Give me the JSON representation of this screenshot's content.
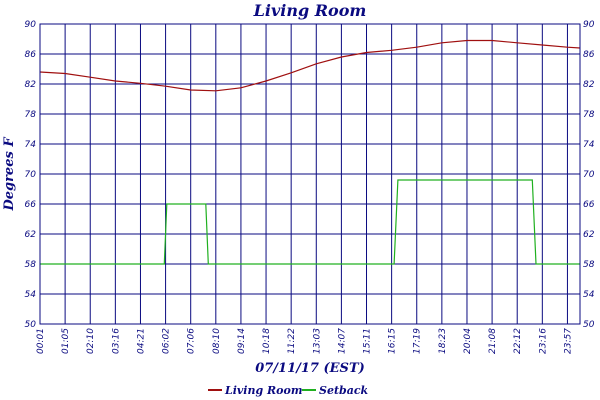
{
  "chart_data": {
    "type": "line",
    "title": "Living Room",
    "xlabel": "07/11/17 (EST)",
    "ylabel": "Degrees F",
    "ylim": [
      50,
      90
    ],
    "yticks": [
      50,
      54,
      58,
      62,
      66,
      70,
      74,
      78,
      82,
      86,
      90
    ],
    "x_tick_labels": [
      "00:01",
      "01:05",
      "02:10",
      "03:16",
      "04:21",
      "06:02",
      "07:06",
      "08:10",
      "09:14",
      "10:18",
      "11:22",
      "13:03",
      "14:07",
      "15:11",
      "16:15",
      "17:19",
      "18:23",
      "20:04",
      "21:08",
      "22:12",
      "23:16",
      "23:57"
    ],
    "grid": true,
    "legend_placement": "bottom",
    "series": [
      {
        "name": "Living Room",
        "color": "#a01010",
        "points": [
          [
            0,
            83.6
          ],
          [
            1,
            83.4
          ],
          [
            2,
            82.9
          ],
          [
            3,
            82.4
          ],
          [
            4,
            82.1
          ],
          [
            5,
            81.7
          ],
          [
            6,
            81.2
          ],
          [
            7,
            81.1
          ],
          [
            8,
            81.5
          ],
          [
            9,
            82.4
          ],
          [
            10,
            83.5
          ],
          [
            11,
            84.7
          ],
          [
            12,
            85.6
          ],
          [
            13,
            86.2
          ],
          [
            14,
            86.5
          ],
          [
            15,
            86.9
          ],
          [
            16,
            87.5
          ],
          [
            17,
            87.8
          ],
          [
            18,
            87.8
          ],
          [
            19,
            87.5
          ],
          [
            20,
            87.2
          ],
          [
            21,
            86.9
          ],
          [
            21.5,
            86.8
          ]
        ]
      },
      {
        "name": "Setback",
        "color": "#20b020",
        "points": [
          [
            0,
            58
          ],
          [
            4.95,
            58
          ],
          [
            5.05,
            66
          ],
          [
            6.6,
            66
          ],
          [
            6.7,
            58
          ],
          [
            14.1,
            58
          ],
          [
            14.25,
            69.2
          ],
          [
            19.6,
            69.2
          ],
          [
            19.75,
            58
          ],
          [
            21.5,
            58
          ]
        ]
      }
    ]
  }
}
